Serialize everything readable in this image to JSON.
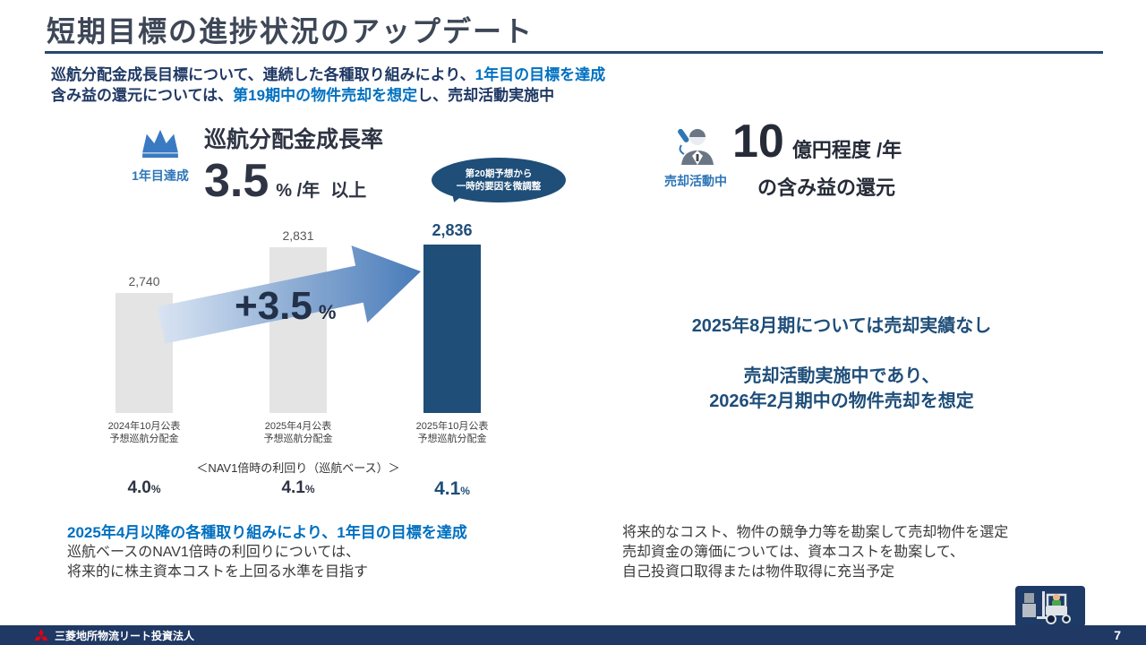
{
  "slide": {
    "title": "短期目標の進捗状況のアップデート"
  },
  "lead": {
    "line1_dark": "巡航分配金成長目標について、連続した各種取り組みにより、",
    "line1_blue": "1年目の目標を達成",
    "line2_dark1": "含み益の還元については、",
    "line2_blue": "第19期中の物件売却を想定",
    "line2_dark2": "し、売却活動実施中"
  },
  "left_panel": {
    "badge_label": "1年目達成",
    "heading": "巡航分配金成長率",
    "rate_value": "3.5",
    "rate_unit": "% /年",
    "rate_suffix": "以上",
    "bubble_line1": "第20期予想から",
    "bubble_line2": "一時的要因を微調整",
    "arrow_value": "+3.5",
    "arrow_unit": "%",
    "nav_heading": "＜NAV1倍時の利回り（巡航ベース）＞",
    "yields": [
      {
        "value": "4.0",
        "unit": "%"
      },
      {
        "value": "4.1",
        "unit": "%"
      },
      {
        "value": "4.1",
        "unit": "%"
      }
    ],
    "footnote_highlight": "2025年4月以降の各種取り組みにより、1年目の目標を達成",
    "footnote_line2": "巡航ベースのNAV1倍時の利回りについては、",
    "footnote_line3": "将来的に株主資本コストを上回る水準を目指す"
  },
  "right_panel": {
    "badge_label": "売却活動中",
    "amount_value": "10",
    "amount_unit": "億円程度 /年",
    "amount_line2": "の含み益の還元",
    "status_line1": "2025年8月期については売却実績なし",
    "status_line2": "売却活動実施中であり、",
    "status_line3": "2026年2月期中の物件売却を想定",
    "footnote_line1": "将来的なコスト、物件の競争力等を勘案して売却物件を選定",
    "footnote_line2": "売却資金の簿価については、資本コストを勘案して、",
    "footnote_line3": "自己投資口取得または物件取得に充当予定"
  },
  "chart_data": {
    "type": "bar",
    "categories": [
      "2024年10月公表\n予想巡航分配金",
      "2025年4月公表\n予想巡航分配金",
      "2025年10月公表\n予想巡航分配金"
    ],
    "values": [
      2740,
      2831,
      2836
    ],
    "value_labels": [
      "2,740",
      "2,831",
      "2,836"
    ],
    "highlight_index": 2,
    "ylim": [
      2500,
      2900
    ],
    "growth_annotation": "+3.5%",
    "grid": false,
    "legend": false
  },
  "footer": {
    "company": "三菱地所物流リート投資法人",
    "page": "7"
  },
  "colors": {
    "accent_blue": "#0070c0",
    "navy": "#1f3864",
    "bar_blue": "#1f4e79",
    "bar_gray": "#e4e4e4",
    "label_blue": "#2e75b6",
    "mitsubishi_red": "#e60012"
  }
}
